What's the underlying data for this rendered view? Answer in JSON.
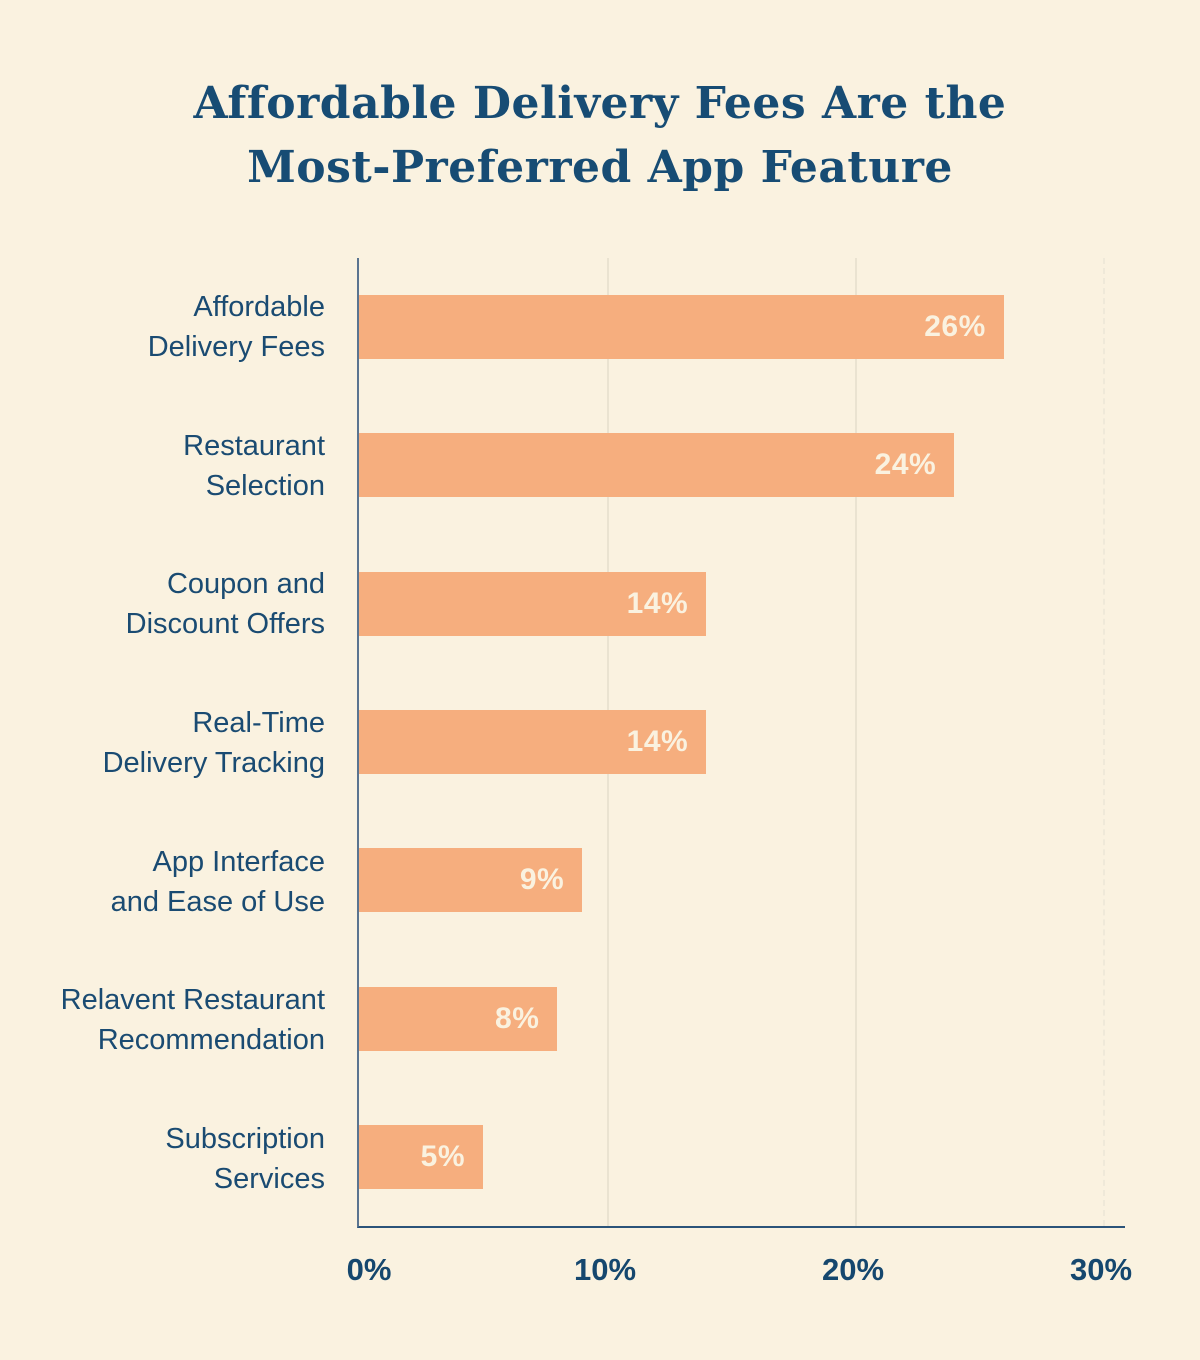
{
  "title": {
    "line1": "Affordable Delivery Fees Are the",
    "line2": "Most-Preferred App Feature"
  },
  "colors": {
    "background": "#FAF2E0",
    "bar": "#F6AE7E",
    "title_text": "#174C74",
    "label_text": "#1A4B72",
    "value_label_text": "#FAF2E0",
    "gridline": "#EAE3D1",
    "y_axis_line": "#5A7490",
    "x_axis_line": "#2B547A"
  },
  "chart_data": {
    "type": "bar",
    "orientation": "horizontal",
    "title": "Affordable Delivery Fees Are the Most-Preferred App Feature",
    "categories": [
      [
        "Affordable",
        "Delivery Fees"
      ],
      [
        "Restaurant",
        "Selection"
      ],
      [
        "Coupon and",
        "Discount Offers"
      ],
      [
        "Real-Time",
        "Delivery Tracking"
      ],
      [
        "App Interface",
        "and Ease of Use"
      ],
      [
        "Relavent Restaurant",
        "Recommendation"
      ],
      [
        "Subscription",
        "Services"
      ]
    ],
    "values": [
      26,
      24,
      14,
      14,
      9,
      8,
      5
    ],
    "value_labels": [
      "26%",
      "24%",
      "14%",
      "14%",
      "9%",
      "8%",
      "5%"
    ],
    "xlabel": "",
    "ylabel": "",
    "xlim": [
      0,
      30
    ],
    "x_ticks": [
      0,
      10,
      20,
      30
    ],
    "x_tick_labels": [
      "0%",
      "10%",
      "20%",
      "30%"
    ],
    "grid": "vertical",
    "legend": "none"
  }
}
